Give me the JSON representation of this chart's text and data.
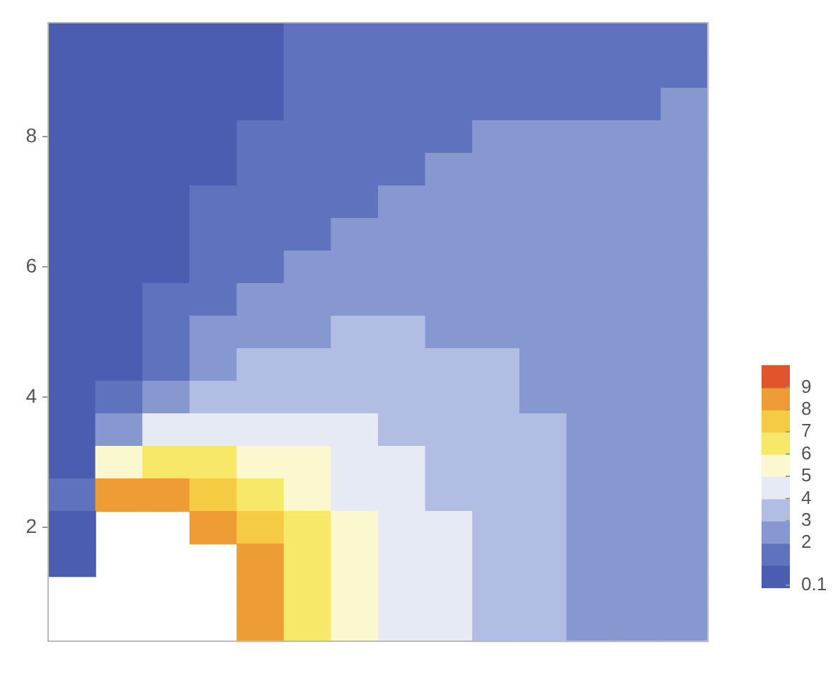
{
  "chart_data": {
    "type": "heatmap",
    "categories": [
      null,
      null,
      null,
      null,
      null,
      null,
      null,
      null,
      null,
      null,
      null,
      null,
      null,
      null
    ],
    "y_categories": [
      null,
      null,
      null,
      "8",
      null,
      null,
      null,
      "6",
      null,
      null,
      null,
      "4",
      null,
      null,
      null,
      "2",
      null,
      null,
      null
    ],
    "tick_labels": "y",
    "clim": [
      0,
      10
    ],
    "cticks": [
      0.1,
      2,
      3,
      4,
      5,
      6,
      7,
      8,
      9
    ],
    "cells": [
      [
        0.4,
        0.4,
        0.5,
        0.6,
        0.8,
        1.0,
        1.2,
        1.4,
        1.5,
        1.6,
        1.6,
        1.6,
        1.6,
        1.6
      ],
      [
        0.4,
        0.4,
        0.5,
        0.6,
        0.8,
        1.0,
        1.2,
        1.4,
        1.6,
        1.7,
        1.7,
        1.7,
        1.8,
        1.8
      ],
      [
        0.4,
        0.4,
        0.5,
        0.7,
        0.9,
        1.1,
        1.3,
        1.5,
        1.7,
        1.8,
        1.8,
        1.9,
        1.9,
        2.0
      ],
      [
        0.4,
        0.5,
        0.6,
        0.8,
        1.0,
        1.2,
        1.5,
        1.7,
        1.9,
        2.0,
        2.0,
        2.1,
        2.1,
        2.1
      ],
      [
        0.4,
        0.5,
        0.6,
        0.9,
        1.1,
        1.4,
        1.7,
        1.9,
        2.0,
        2.1,
        2.1,
        2.2,
        2.2,
        2.2
      ],
      [
        0.4,
        0.5,
        0.7,
        1.0,
        1.3,
        1.6,
        1.9,
        2.0,
        2.1,
        2.2,
        2.2,
        2.2,
        2.2,
        2.2
      ],
      [
        0.4,
        0.5,
        0.8,
        1.2,
        1.5,
        1.8,
        2.0,
        2.2,
        2.3,
        2.3,
        2.3,
        2.3,
        2.2,
        2.2
      ],
      [
        0.4,
        0.6,
        0.9,
        1.4,
        1.8,
        2.1,
        2.3,
        2.4,
        2.5,
        2.5,
        2.4,
        2.3,
        2.3,
        2.2
      ],
      [
        0.4,
        0.6,
        1.1,
        1.7,
        2.1,
        2.4,
        2.6,
        2.7,
        2.7,
        2.6,
        2.5,
        2.4,
        2.3,
        2.2
      ],
      [
        0.4,
        0.7,
        1.4,
        2.1,
        2.6,
        2.9,
        3.0,
        3.0,
        2.9,
        2.8,
        2.6,
        2.5,
        2.4,
        2.2
      ],
      [
        0.5,
        0.9,
        1.9,
        2.7,
        3.2,
        3.4,
        3.4,
        3.3,
        3.1,
        3.0,
        2.8,
        2.6,
        2.4,
        2.3
      ],
      [
        0.5,
        1.2,
        2.7,
        3.6,
        3.9,
        3.9,
        3.8,
        3.6,
        3.4,
        3.2,
        2.9,
        2.7,
        2.5,
        2.3
      ],
      [
        0.6,
        2.0,
        4.2,
        4.8,
        4.7,
        4.5,
        4.2,
        3.9,
        3.6,
        3.3,
        3.0,
        2.8,
        2.6,
        2.4
      ],
      [
        0.7,
        5.0,
        6.5,
        6.2,
        5.6,
        5.0,
        4.6,
        4.2,
        3.8,
        3.4,
        3.1,
        2.9,
        2.6,
        2.4
      ],
      [
        1.0,
        8.6,
        8.5,
        7.8,
        6.4,
        5.6,
        4.9,
        4.4,
        3.9,
        3.5,
        3.2,
        2.9,
        2.6,
        2.4
      ],
      [
        0.8,
        null,
        null,
        8.6,
        7.3,
        6.1,
        5.2,
        4.5,
        4.0,
        3.6,
        3.2,
        2.9,
        2.6,
        2.4
      ],
      [
        0.6,
        null,
        null,
        null,
        8.0,
        6.4,
        5.3,
        4.6,
        4.0,
        3.6,
        3.2,
        2.9,
        2.6,
        2.4
      ],
      [
        null,
        null,
        null,
        null,
        8.3,
        6.5,
        5.4,
        4.6,
        4.0,
        3.6,
        3.2,
        2.9,
        2.6,
        2.3
      ],
      [
        null,
        null,
        null,
        null,
        8.4,
        6.5,
        5.4,
        4.6,
        4.0,
        3.6,
        3.2,
        2.9,
        2.6,
        2.3
      ]
    ]
  }
}
